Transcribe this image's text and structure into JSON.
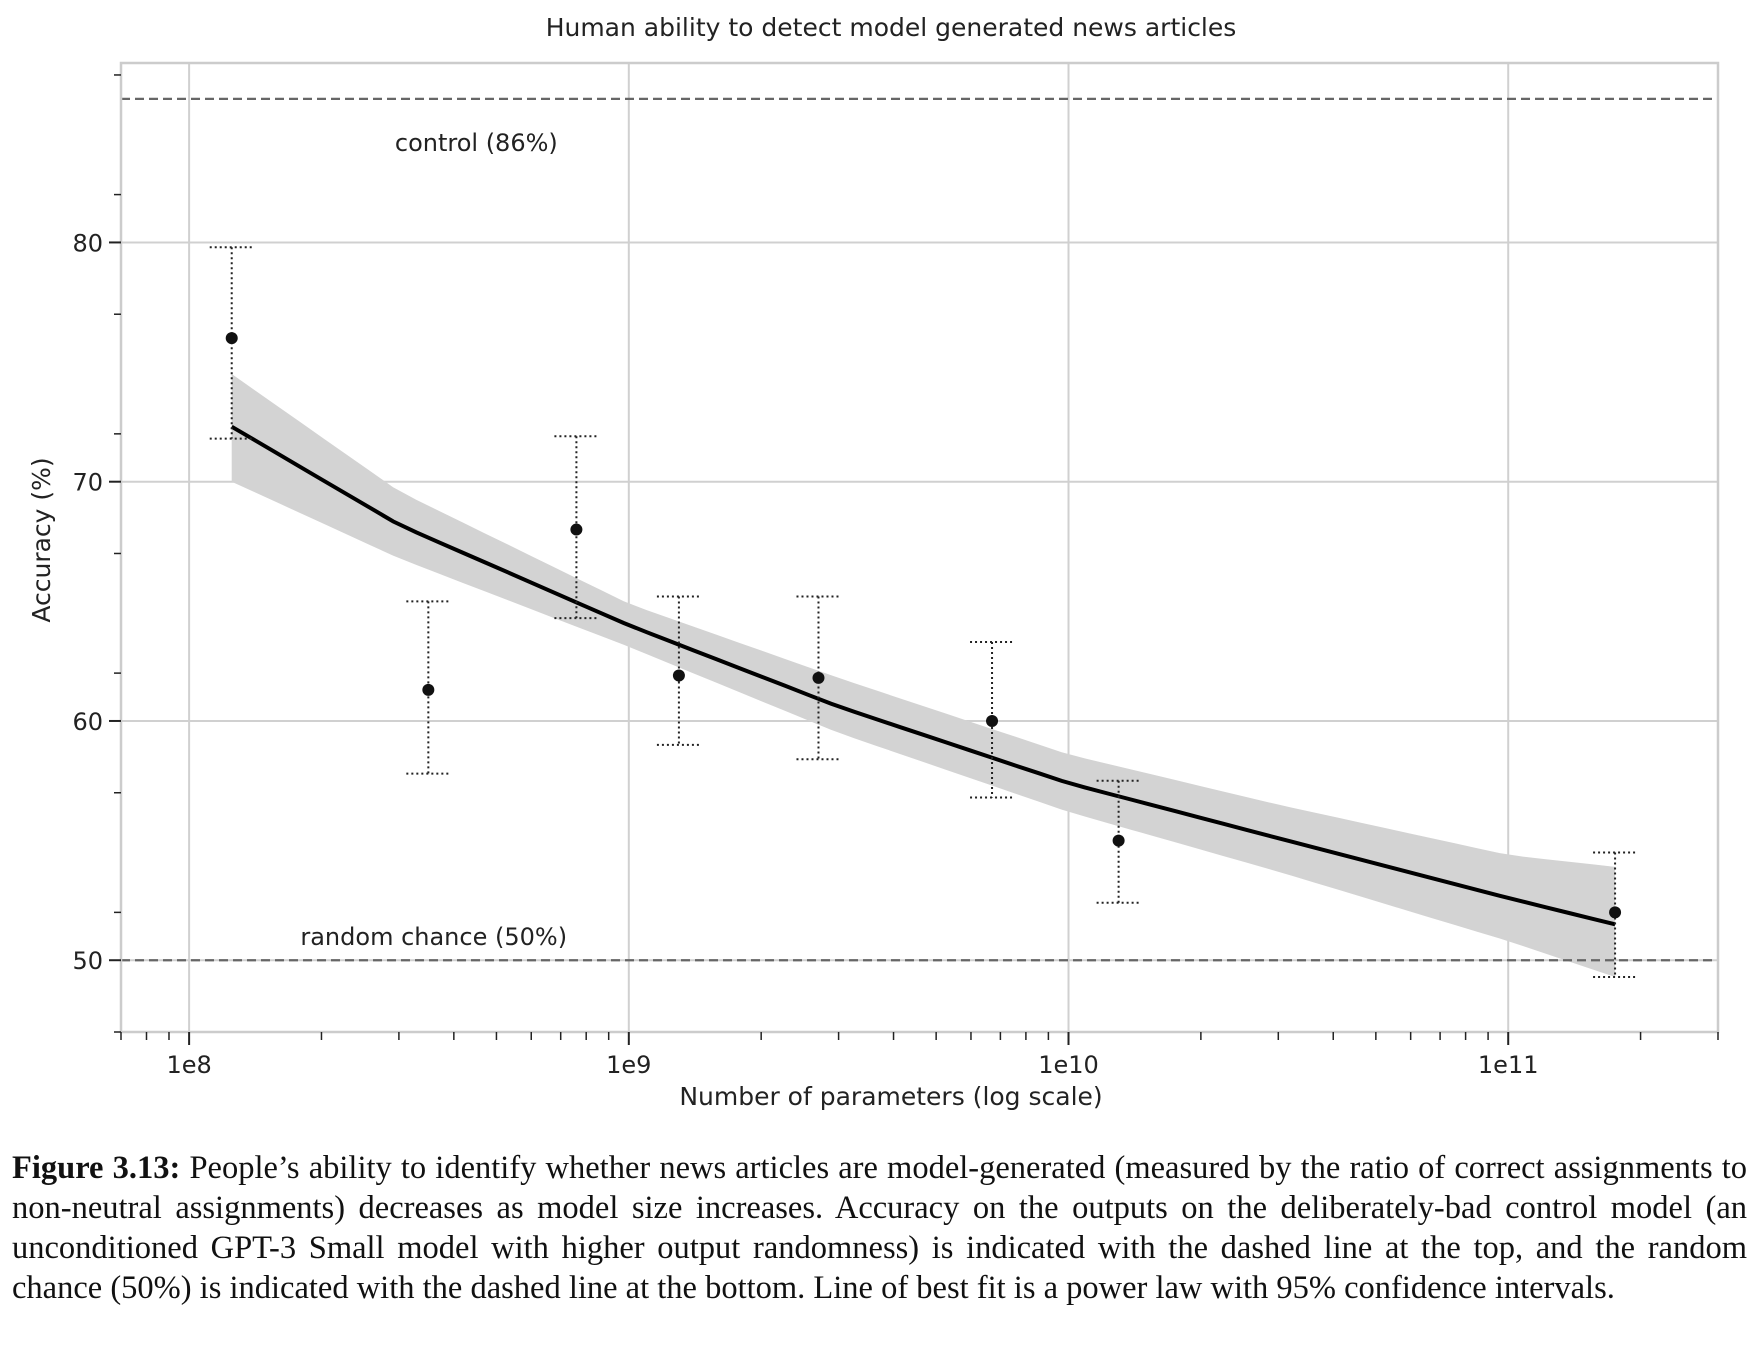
{
  "chart_data": {
    "type": "scatter",
    "title": "Human ability to detect model generated news articles",
    "xlabel": "Number of parameters (log scale)",
    "ylabel": "Accuracy (%)",
    "x_scale": "log",
    "xlim": [
      70000000,
      300000000000
    ],
    "ylim": [
      47,
      87.5
    ],
    "x_ticks": [
      {
        "value": 100000000,
        "label": "1e8"
      },
      {
        "value": 1000000000,
        "label": "1e9"
      },
      {
        "value": 10000000000,
        "label": "1e10"
      },
      {
        "value": 100000000000,
        "label": "1e11"
      }
    ],
    "y_ticks": [
      50,
      60,
      70,
      80
    ],
    "grid": true,
    "points": [
      {
        "x": 125000000,
        "y": 76.0,
        "lo": 71.8,
        "hi": 79.8
      },
      {
        "x": 350000000,
        "y": 61.3,
        "lo": 57.8,
        "hi": 65.0
      },
      {
        "x": 760000000,
        "y": 68.0,
        "lo": 64.3,
        "hi": 71.9
      },
      {
        "x": 1300000000,
        "y": 61.9,
        "lo": 59.0,
        "hi": 65.2
      },
      {
        "x": 2700000000,
        "y": 61.8,
        "lo": 58.4,
        "hi": 65.2
      },
      {
        "x": 6700000000,
        "y": 60.0,
        "lo": 56.8,
        "hi": 63.3
      },
      {
        "x": 13000000000,
        "y": 55.0,
        "lo": 52.4,
        "hi": 57.5
      },
      {
        "x": 175000000000,
        "y": 52.0,
        "lo": 49.3,
        "hi": 54.5
      }
    ],
    "fit": {
      "label": "power law best fit",
      "x": [
        125000000,
        300000000,
        1000000000,
        3000000000,
        10000000000,
        30000000000,
        100000000000,
        175000000000
      ],
      "y": [
        72.3,
        68.2,
        64.0,
        60.6,
        57.4,
        55.1,
        52.6,
        51.5
      ],
      "ci_lo": [
        70.0,
        66.8,
        63.1,
        59.5,
        56.2,
        53.7,
        50.8,
        49.3
      ],
      "ci_hi": [
        74.5,
        69.6,
        64.9,
        61.8,
        58.6,
        56.5,
        54.4,
        53.9
      ]
    },
    "reference_lines": [
      {
        "y": 86,
        "label": "control (86%)"
      },
      {
        "y": 50,
        "label": "random chance (50%)"
      }
    ]
  },
  "caption": {
    "label": "Figure 3.13:",
    "text": "People’s ability to identify whether news articles are model-generated (measured by the ratio of correct assignments to non-neutral assignments) decreases as model size increases. Accuracy on the outputs on the deliberately-bad control model (an unconditioned GPT-3 Small model with higher output randomness) is indicated with the dashed line at the top, and the random chance (50%) is indicated with the dashed line at the bottom. Line of best fit is a power law with 95% confidence intervals."
  }
}
